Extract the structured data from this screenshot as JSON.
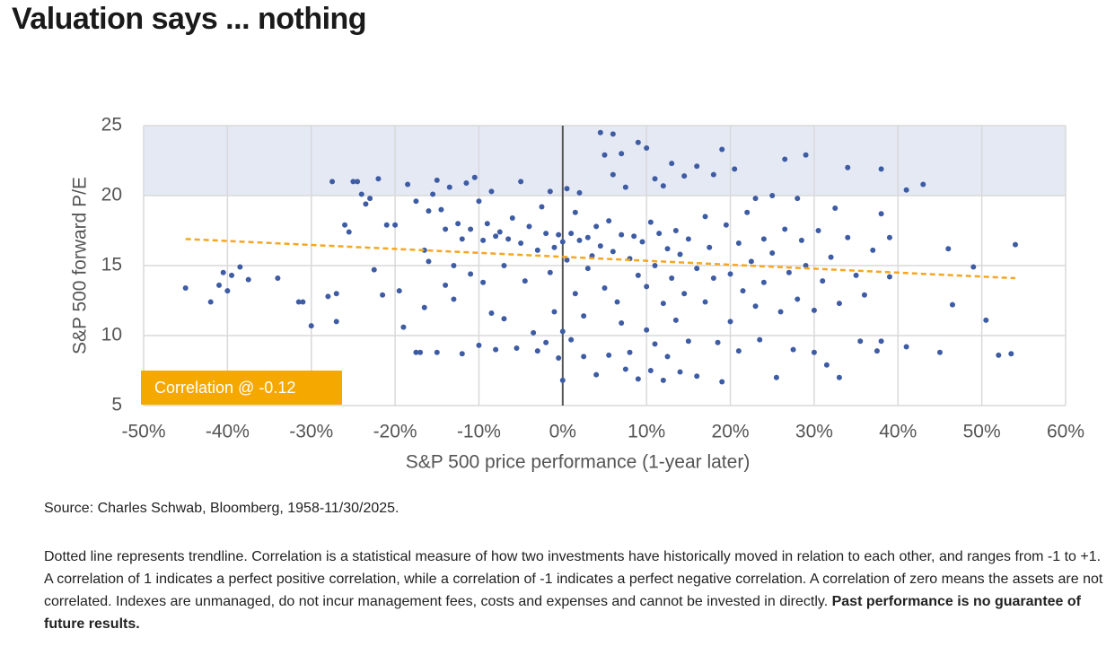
{
  "chart_data": {
    "type": "scatter",
    "title": "Valuation says ... nothing",
    "ylabel": "S&P 500 forward P/E",
    "xlabel": "S&P 500 price performance (1-year later)",
    "annotation": "Correlation @ -0.12",
    "color": "#3e5ca3",
    "grid": true,
    "xlim": [
      -50,
      60
    ],
    "ylim": [
      5,
      25
    ],
    "xticks": [
      {
        "value": -50,
        "label": "-50%"
      },
      {
        "value": -40,
        "label": "-40%"
      },
      {
        "value": -30,
        "label": "-30%"
      },
      {
        "value": -20,
        "label": "-20%"
      },
      {
        "value": -10,
        "label": "-10%"
      },
      {
        "value": 0,
        "label": "0%"
      },
      {
        "value": 10,
        "label": "10%"
      },
      {
        "value": 20,
        "label": "20%"
      },
      {
        "value": 30,
        "label": "30%"
      },
      {
        "value": 40,
        "label": "40%"
      },
      {
        "value": 50,
        "label": "50%"
      },
      {
        "value": 60,
        "label": "60%"
      }
    ],
    "yticks": [
      5,
      10,
      15,
      20,
      25
    ],
    "shaded_band": [
      20,
      25
    ],
    "trendline": {
      "x": [
        -45,
        54
      ],
      "values": [
        16.9,
        14.1
      ],
      "color": "#f5a623"
    },
    "x": [
      -45,
      -42,
      -41,
      -40.5,
      -40,
      -39.5,
      -38.5,
      -37.5,
      -34,
      -31.5,
      -31,
      -30,
      -28,
      -27.5,
      -27,
      -27,
      -26,
      -25.5,
      -25,
      -24.5,
      -24,
      -23.5,
      -23,
      -22.5,
      -22,
      -21.5,
      -21,
      -20,
      -19.5,
      -19,
      -18.5,
      -17.5,
      -17.5,
      -17,
      -16.5,
      -16.5,
      -16,
      -16,
      -15.5,
      -15,
      -15,
      -14.5,
      -14,
      -14,
      -13.5,
      -13,
      -13,
      -12.5,
      -12,
      -12,
      -11.5,
      -11,
      -11,
      -10.5,
      -10,
      -10,
      -9.5,
      -9.5,
      -9,
      -8.5,
      -8.5,
      -8,
      -8,
      -7.5,
      -7,
      -7,
      -6.5,
      -6,
      -5.5,
      -5,
      -5,
      -4.5,
      -4,
      -3.5,
      -3,
      -3,
      -2.5,
      -2,
      -2,
      -1.5,
      -1.5,
      -1,
      -1,
      -0.5,
      -0.5,
      0,
      0,
      0,
      0.5,
      0.5,
      1,
      1,
      1.5,
      1.5,
      2,
      2,
      2.5,
      2.5,
      3,
      3,
      3.5,
      4,
      4,
      4.5,
      4.5,
      5,
      5,
      5.5,
      5.5,
      6,
      6,
      6,
      6.5,
      7,
      7,
      7,
      7.5,
      7.5,
      8,
      8,
      8.5,
      9,
      9,
      9,
      9.5,
      10,
      10,
      10,
      10.5,
      10.5,
      11,
      11,
      11,
      11.5,
      12,
      12,
      12,
      12.5,
      12.5,
      13,
      13,
      13.5,
      13.5,
      14,
      14,
      14.5,
      14.5,
      15,
      15,
      16,
      16,
      16,
      17,
      17,
      17.5,
      18,
      18,
      18.5,
      19,
      19,
      19.5,
      20,
      20,
      20.5,
      21,
      21,
      21.5,
      22,
      22.5,
      23,
      23,
      23.5,
      24,
      24,
      25,
      25,
      25.5,
      26,
      26.5,
      26.5,
      27,
      27.5,
      28,
      28,
      28.5,
      29,
      29,
      30,
      30,
      30.5,
      31,
      31.5,
      32,
      32.5,
      33,
      33,
      34,
      34,
      35,
      35.5,
      36,
      37,
      37.5,
      38,
      38,
      38,
      39,
      39,
      41,
      41,
      43,
      45,
      46,
      46.5,
      49,
      50.5,
      52,
      53.5,
      54
    ],
    "values": [
      13.4,
      12.4,
      13.6,
      14.5,
      13.2,
      14.3,
      14.9,
      14.0,
      14.1,
      12.4,
      12.4,
      10.7,
      12.8,
      21.0,
      11.0,
      13.0,
      17.9,
      17.4,
      21.0,
      21.0,
      20.1,
      19.4,
      19.8,
      14.7,
      21.2,
      12.9,
      17.9,
      17.9,
      13.2,
      10.6,
      20.8,
      19.6,
      8.8,
      8.8,
      16.1,
      12.0,
      18.9,
      15.3,
      20.1,
      21.1,
      8.8,
      19.0,
      17.6,
      13.6,
      20.6,
      15.0,
      12.6,
      18.0,
      16.9,
      8.7,
      20.9,
      17.6,
      14.4,
      21.3,
      19.6,
      9.3,
      16.8,
      13.8,
      18.0,
      20.3,
      11.6,
      17.1,
      9.0,
      17.4,
      15.0,
      11.2,
      16.9,
      18.4,
      9.1,
      21.0,
      16.6,
      13.9,
      17.8,
      10.2,
      16.1,
      8.9,
      19.2,
      17.3,
      9.5,
      20.3,
      14.5,
      16.3,
      11.7,
      17.2,
      8.4,
      16.7,
      10.3,
      6.8,
      20.5,
      15.4,
      17.3,
      9.7,
      18.8,
      13.0,
      16.8,
      20.2,
      11.4,
      8.5,
      17.0,
      14.8,
      15.7,
      17.8,
      7.2,
      24.5,
      16.4,
      22.9,
      13.4,
      18.2,
      8.6,
      24.4,
      21.5,
      16.0,
      12.4,
      23.0,
      17.2,
      10.9,
      20.6,
      7.6,
      15.5,
      8.8,
      17.1,
      23.8,
      14.3,
      6.9,
      16.7,
      23.4,
      13.5,
      10.4,
      18.1,
      7.5,
      21.2,
      15.0,
      9.4,
      17.3,
      20.7,
      12.3,
      6.8,
      16.2,
      8.5,
      22.3,
      14.1,
      17.5,
      11.1,
      15.8,
      7.4,
      21.4,
      13.0,
      16.9,
      9.6,
      22.1,
      14.8,
      7.1,
      18.5,
      12.4,
      16.3,
      21.5,
      14.1,
      9.5,
      23.3,
      6.7,
      17.9,
      14.4,
      11.0,
      21.9,
      16.6,
      8.9,
      13.2,
      18.8,
      15.3,
      12.1,
      19.8,
      9.7,
      16.9,
      13.8,
      20.0,
      15.9,
      7.0,
      11.7,
      17.6,
      22.6,
      14.5,
      9.0,
      19.8,
      12.6,
      16.8,
      22.9,
      15.0,
      11.8,
      8.8,
      17.5,
      13.9,
      7.9,
      15.6,
      19.1,
      7.0,
      12.3,
      17.0,
      22.0,
      14.3,
      9.6,
      12.9,
      16.1,
      8.9,
      21.9,
      18.7,
      9.6,
      17.0,
      14.2,
      20.4,
      9.2,
      20.8,
      8.8,
      16.2,
      12.2,
      14.9,
      11.1,
      8.6,
      8.7,
      16.5
    ]
  },
  "source": "Source: Charles Schwab, Bloomberg, 1958-11/30/2025.",
  "notes": {
    "text": "Dotted line represents trendline. Correlation is a statistical measure of how two investments have historically moved in relation to each other, and ranges from -1 to +1. A correlation of 1 indicates a perfect positive correlation, while a correlation of -1 indicates a perfect negative correlation. A correlation of zero means the assets are not correlated. Indexes are unmanaged, do not incur management fees, costs and expenses and cannot be invested in directly.",
    "bold": "Past performance is no guarantee of future results."
  }
}
